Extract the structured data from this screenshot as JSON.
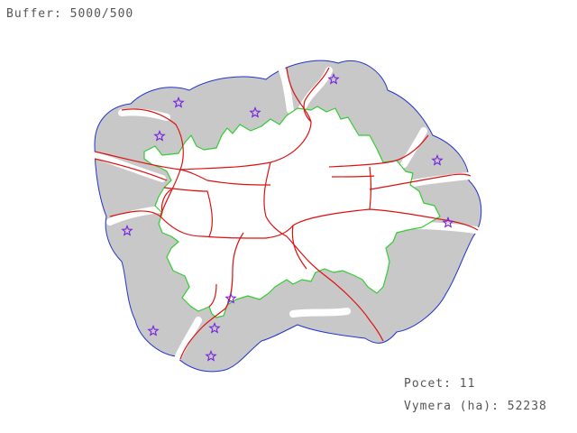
{
  "header": {
    "buffer_text": "Buffer: 5000/500"
  },
  "stats": {
    "count_text": "Pocet: 11",
    "area_text": "Vymera (ha): 52238"
  },
  "map": {
    "marker_count": 11,
    "colors": {
      "buffer_fill": "#c8c8c8",
      "buffer_outline": "#2233cc",
      "city_boundary": "#33cc33",
      "roads": "#dd1111",
      "markers": "#7722dd",
      "road_corridor": "#ffffff"
    },
    "icons": {
      "marker": "star-icon"
    }
  }
}
